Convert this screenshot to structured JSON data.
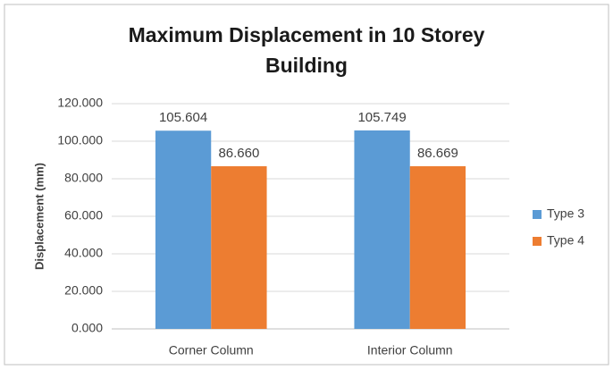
{
  "chart_data": {
    "type": "bar",
    "title": "Maximum Displacement in 10 Storey Building",
    "y_label": "Displacement (mm)",
    "categories": [
      "Corner Column",
      "Interior Column"
    ],
    "series": [
      {
        "name": "Type 3",
        "color": "#5b9bd5",
        "values": [
          105.604,
          105.749
        ]
      },
      {
        "name": "Type 4",
        "color": "#ed7d31",
        "values": [
          86.66,
          86.669
        ],
        "value_labels": [
          "86.660",
          "86.669"
        ]
      }
    ],
    "ylim": [
      0,
      120
    ],
    "yticks": [
      {
        "value": 0,
        "label": "0.000"
      },
      {
        "value": 20,
        "label": "20.000"
      },
      {
        "value": 40,
        "label": "40.000"
      },
      {
        "value": 60,
        "label": "60.000"
      },
      {
        "value": 80,
        "label": "80.000"
      },
      {
        "value": 100,
        "label": "100.000"
      },
      {
        "value": 120,
        "label": "120.000"
      }
    ],
    "grid": true,
    "legend": "right"
  }
}
